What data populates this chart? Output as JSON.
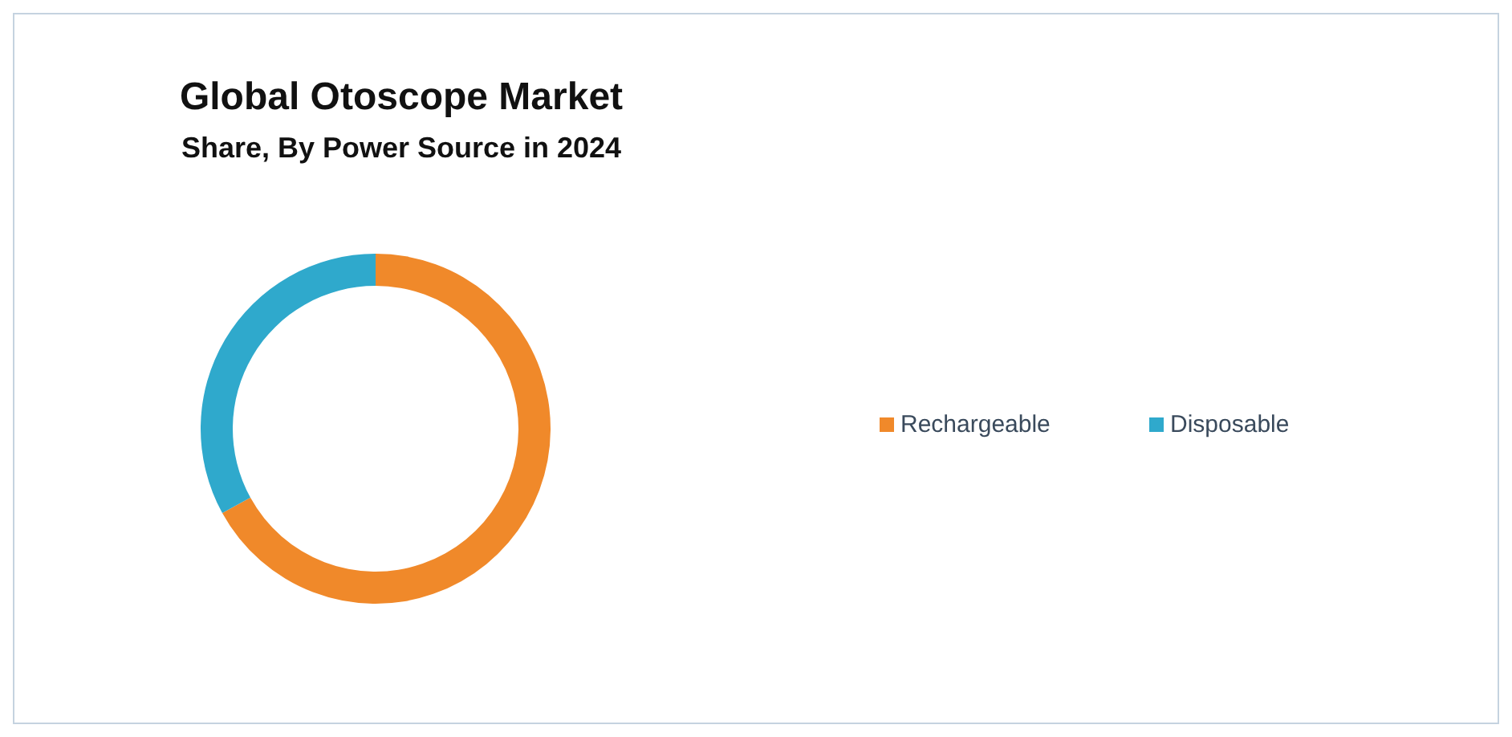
{
  "chart_data": {
    "type": "donut",
    "title": "Global Otoscope Market",
    "subtitle": "Share, By Power Source in 2024",
    "categories": [
      "Rechargeable",
      "Disposable"
    ],
    "values": [
      67,
      33
    ],
    "colors": [
      "#f0892a",
      "#2fa9cc"
    ],
    "legend": "right"
  }
}
